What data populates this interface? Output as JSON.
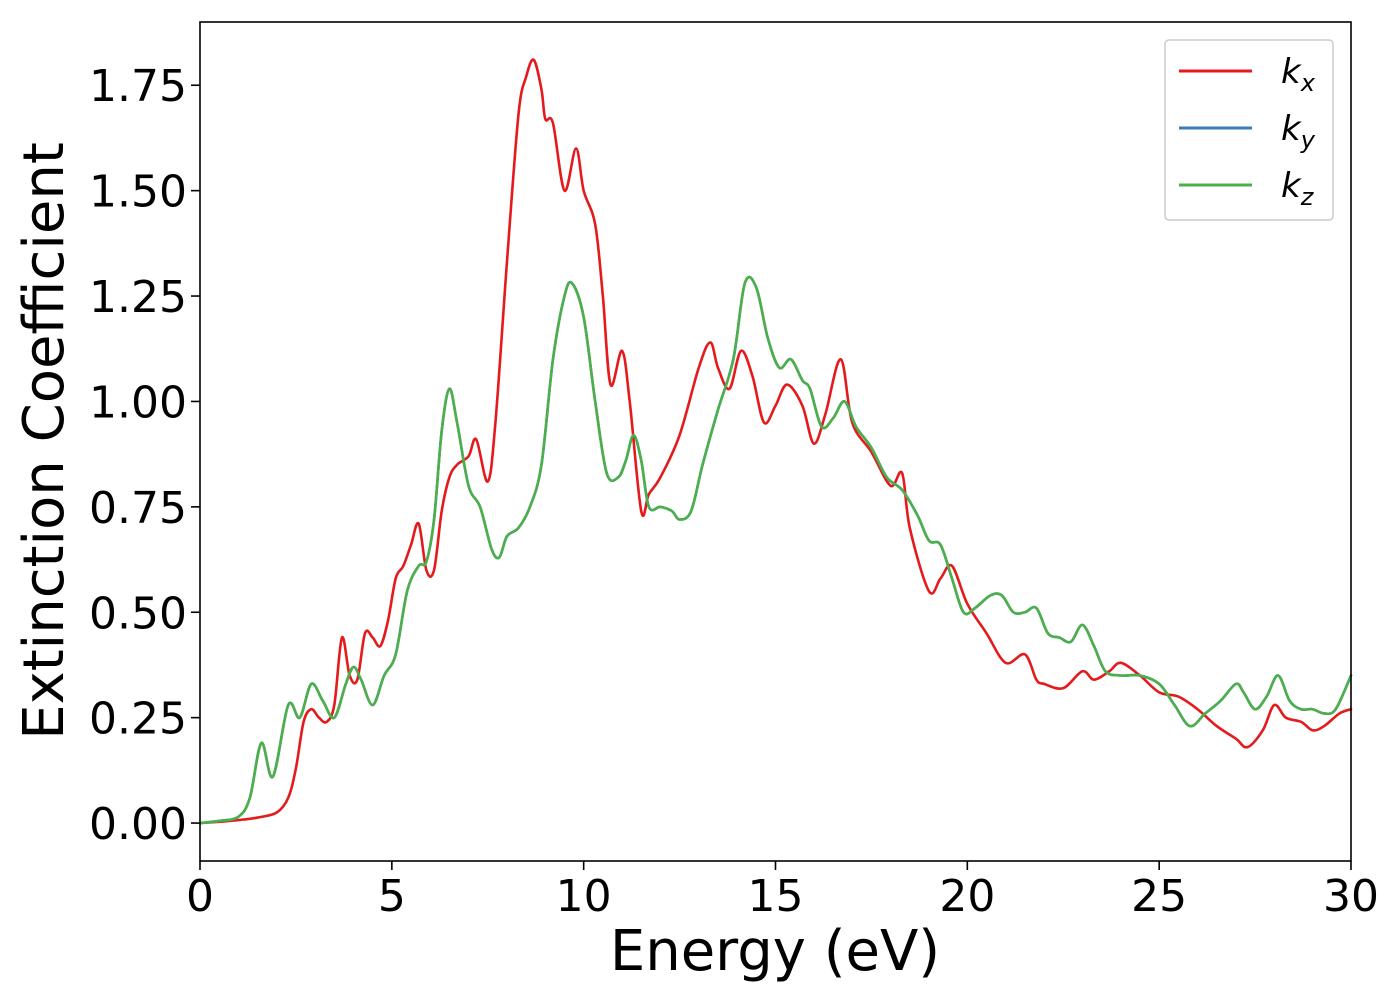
{
  "chart_data": {
    "type": "line",
    "xlabel": "Energy (eV)",
    "ylabel": "Extinction Coefficient",
    "xlim": [
      0,
      30
    ],
    "ylim": [
      -0.09,
      1.9
    ],
    "xticks": [
      0,
      5,
      10,
      15,
      20,
      25,
      30
    ],
    "xtick_labels": [
      "0",
      "5",
      "10",
      "15",
      "20",
      "25",
      "30"
    ],
    "yticks": [
      0.0,
      0.25,
      0.5,
      0.75,
      1.0,
      1.25,
      1.5,
      1.75
    ],
    "ytick_labels": [
      "0.00",
      "0.25",
      "0.50",
      "0.75",
      "1.00",
      "1.25",
      "1.50",
      "1.75"
    ],
    "grid": false,
    "legend_position": "top-right",
    "series": [
      {
        "name": "k_x",
        "legend_base": "k",
        "legend_sub": "x",
        "color": "#e41a1c",
        "x": [
          0,
          0.5,
          1.0,
          1.5,
          2.0,
          2.3,
          2.5,
          2.7,
          2.9,
          3.1,
          3.3,
          3.5,
          3.7,
          3.9,
          4.1,
          4.3,
          4.5,
          4.7,
          4.9,
          5.1,
          5.3,
          5.5,
          5.7,
          5.9,
          6.1,
          6.3,
          6.5,
          6.7,
          7.0,
          7.2,
          7.5,
          7.7,
          8.0,
          8.3,
          8.5,
          8.7,
          8.9,
          9.0,
          9.2,
          9.5,
          9.8,
          10.0,
          10.3,
          10.5,
          10.7,
          11.0,
          11.2,
          11.5,
          11.7,
          12.0,
          12.5,
          13.0,
          13.3,
          13.5,
          13.8,
          14.1,
          14.4,
          14.7,
          15.0,
          15.3,
          15.7,
          16.0,
          16.3,
          16.7,
          17.0,
          17.5,
          18.0,
          18.3,
          18.5,
          19.0,
          19.3,
          19.6,
          20.0,
          20.5,
          21.0,
          21.5,
          21.8,
          22.0,
          22.5,
          23.0,
          23.3,
          23.7,
          24.0,
          24.5,
          25.0,
          25.5,
          26.0,
          26.5,
          27.0,
          27.3,
          27.7,
          28.0,
          28.3,
          28.7,
          29.0,
          29.3,
          29.7,
          30.0
        ],
        "y": [
          0.0,
          0.003,
          0.007,
          0.013,
          0.025,
          0.06,
          0.13,
          0.24,
          0.27,
          0.25,
          0.24,
          0.28,
          0.44,
          0.35,
          0.34,
          0.45,
          0.44,
          0.42,
          0.48,
          0.58,
          0.61,
          0.66,
          0.71,
          0.6,
          0.6,
          0.74,
          0.82,
          0.85,
          0.87,
          0.91,
          0.81,
          0.95,
          1.33,
          1.68,
          1.77,
          1.81,
          1.74,
          1.67,
          1.66,
          1.5,
          1.6,
          1.5,
          1.42,
          1.25,
          1.04,
          1.12,
          1.0,
          0.74,
          0.78,
          0.82,
          0.92,
          1.08,
          1.14,
          1.08,
          1.03,
          1.12,
          1.06,
          0.95,
          0.99,
          1.04,
          0.99,
          0.9,
          0.97,
          1.1,
          0.95,
          0.88,
          0.8,
          0.83,
          0.7,
          0.55,
          0.58,
          0.61,
          0.52,
          0.45,
          0.38,
          0.4,
          0.34,
          0.33,
          0.32,
          0.36,
          0.34,
          0.36,
          0.38,
          0.35,
          0.31,
          0.3,
          0.27,
          0.23,
          0.2,
          0.18,
          0.22,
          0.28,
          0.25,
          0.24,
          0.22,
          0.23,
          0.26,
          0.27
        ]
      },
      {
        "name": "k_y",
        "legend_base": "k",
        "legend_sub": "y",
        "color": "#377eb8",
        "x": [
          0,
          0.5,
          1.0,
          1.3,
          1.6,
          1.9,
          2.3,
          2.6,
          2.9,
          3.2,
          3.5,
          3.8,
          4.0,
          4.2,
          4.5,
          4.8,
          5.1,
          5.4,
          5.7,
          5.9,
          6.1,
          6.3,
          6.5,
          6.7,
          7.0,
          7.3,
          7.6,
          7.8,
          8.0,
          8.3,
          8.6,
          8.9,
          9.2,
          9.5,
          9.7,
          10.0,
          10.3,
          10.6,
          10.9,
          11.1,
          11.3,
          11.5,
          11.7,
          12.0,
          12.3,
          12.5,
          12.8,
          13.1,
          13.5,
          13.9,
          14.2,
          14.5,
          14.8,
          15.1,
          15.4,
          15.7,
          15.9,
          16.2,
          16.5,
          16.8,
          17.1,
          17.5,
          17.9,
          18.3,
          18.7,
          19.0,
          19.3,
          19.6,
          19.9,
          20.2,
          20.6,
          20.9,
          21.2,
          21.5,
          21.8,
          22.1,
          22.4,
          22.7,
          23.0,
          23.3,
          23.6,
          24.0,
          24.5,
          25.0,
          25.4,
          25.8,
          26.2,
          26.6,
          27.0,
          27.2,
          27.5,
          27.8,
          28.1,
          28.4,
          28.7,
          29.0,
          29.3,
          29.6,
          30.0
        ],
        "y": [
          0.0,
          0.005,
          0.015,
          0.06,
          0.19,
          0.11,
          0.28,
          0.25,
          0.33,
          0.29,
          0.25,
          0.33,
          0.37,
          0.34,
          0.28,
          0.35,
          0.4,
          0.55,
          0.61,
          0.62,
          0.72,
          0.93,
          1.03,
          0.95,
          0.8,
          0.75,
          0.65,
          0.63,
          0.68,
          0.7,
          0.75,
          0.85,
          1.1,
          1.25,
          1.28,
          1.2,
          1.0,
          0.83,
          0.82,
          0.86,
          0.92,
          0.86,
          0.75,
          0.75,
          0.74,
          0.72,
          0.74,
          0.85,
          0.98,
          1.1,
          1.28,
          1.27,
          1.15,
          1.08,
          1.1,
          1.05,
          1.03,
          0.94,
          0.96,
          1.0,
          0.94,
          0.89,
          0.82,
          0.79,
          0.73,
          0.67,
          0.66,
          0.58,
          0.5,
          0.51,
          0.54,
          0.54,
          0.5,
          0.5,
          0.51,
          0.45,
          0.44,
          0.43,
          0.47,
          0.42,
          0.36,
          0.35,
          0.35,
          0.33,
          0.28,
          0.23,
          0.26,
          0.29,
          0.33,
          0.31,
          0.27,
          0.3,
          0.35,
          0.29,
          0.27,
          0.27,
          0.26,
          0.27,
          0.35
        ]
      },
      {
        "name": "k_z",
        "legend_base": "k",
        "legend_sub": "z",
        "color": "#4daf4a",
        "x": [
          0,
          0.5,
          1.0,
          1.3,
          1.6,
          1.9,
          2.3,
          2.6,
          2.9,
          3.2,
          3.5,
          3.8,
          4.0,
          4.2,
          4.5,
          4.8,
          5.1,
          5.4,
          5.7,
          5.9,
          6.1,
          6.3,
          6.5,
          6.7,
          7.0,
          7.3,
          7.6,
          7.8,
          8.0,
          8.3,
          8.6,
          8.9,
          9.2,
          9.5,
          9.7,
          10.0,
          10.3,
          10.6,
          10.9,
          11.1,
          11.3,
          11.5,
          11.7,
          12.0,
          12.3,
          12.5,
          12.8,
          13.1,
          13.5,
          13.9,
          14.2,
          14.5,
          14.8,
          15.1,
          15.4,
          15.7,
          15.9,
          16.2,
          16.5,
          16.8,
          17.1,
          17.5,
          17.9,
          18.3,
          18.7,
          19.0,
          19.3,
          19.6,
          19.9,
          20.2,
          20.6,
          20.9,
          21.2,
          21.5,
          21.8,
          22.1,
          22.4,
          22.7,
          23.0,
          23.3,
          23.6,
          24.0,
          24.5,
          25.0,
          25.4,
          25.8,
          26.2,
          26.6,
          27.0,
          27.2,
          27.5,
          27.8,
          28.1,
          28.4,
          28.7,
          29.0,
          29.3,
          29.6,
          30.0
        ],
        "y": [
          0.0,
          0.005,
          0.015,
          0.06,
          0.19,
          0.11,
          0.28,
          0.25,
          0.33,
          0.29,
          0.25,
          0.33,
          0.37,
          0.34,
          0.28,
          0.35,
          0.4,
          0.55,
          0.61,
          0.62,
          0.72,
          0.93,
          1.03,
          0.95,
          0.8,
          0.75,
          0.65,
          0.63,
          0.68,
          0.7,
          0.75,
          0.85,
          1.1,
          1.25,
          1.28,
          1.2,
          1.0,
          0.83,
          0.82,
          0.86,
          0.92,
          0.86,
          0.75,
          0.75,
          0.74,
          0.72,
          0.74,
          0.85,
          0.98,
          1.1,
          1.28,
          1.27,
          1.15,
          1.08,
          1.1,
          1.05,
          1.03,
          0.94,
          0.96,
          1.0,
          0.94,
          0.89,
          0.82,
          0.79,
          0.73,
          0.67,
          0.66,
          0.58,
          0.5,
          0.51,
          0.54,
          0.54,
          0.5,
          0.5,
          0.51,
          0.45,
          0.44,
          0.43,
          0.47,
          0.42,
          0.36,
          0.35,
          0.35,
          0.33,
          0.28,
          0.23,
          0.26,
          0.29,
          0.33,
          0.31,
          0.27,
          0.3,
          0.35,
          0.29,
          0.27,
          0.27,
          0.26,
          0.27,
          0.35
        ]
      }
    ]
  }
}
